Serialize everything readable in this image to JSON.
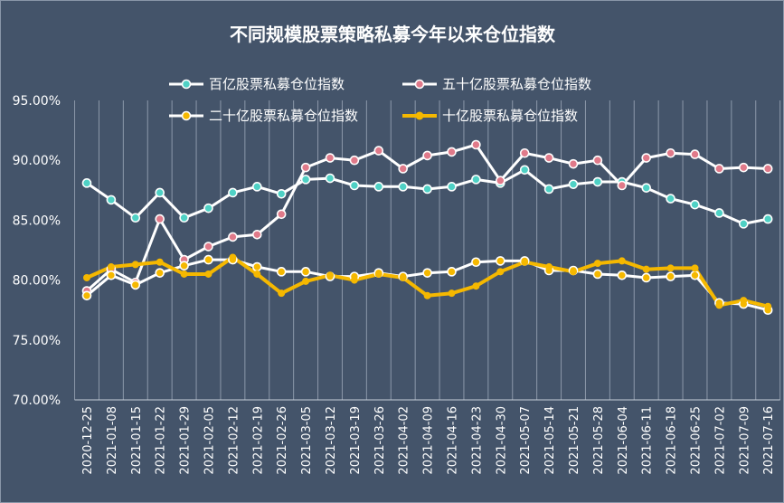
{
  "chart_data": {
    "type": "line",
    "title": "不同规模股票策略私募今年以来仓位指数",
    "xlabel": "",
    "ylabel": "",
    "ylim": [
      70,
      95
    ],
    "y_ticks": [
      "70.00%",
      "75.00%",
      "80.00%",
      "85.00%",
      "90.00%",
      "95.00%"
    ],
    "y_tick_values": [
      70,
      75,
      80,
      85,
      90,
      95
    ],
    "grid": "vertical",
    "legend_position": "top",
    "categories": [
      "2020-12-25",
      "2021-01-08",
      "2021-01-15",
      "2021-01-22",
      "2021-01-29",
      "2021-02-05",
      "2021-02-12",
      "2021-02-19",
      "2021-02-26",
      "2021-03-05",
      "2021-03-12",
      "2021-03-19",
      "2021-03-26",
      "2021-04-02",
      "2021-04-09",
      "2021-04-16",
      "2021-04-23",
      "2021-04-30",
      "2021-05-07",
      "2021-05-14",
      "2021-05-21",
      "2021-05-28",
      "2021-06-04",
      "2021-06-11",
      "2021-06-18",
      "2021-06-25",
      "2021-07-02",
      "2021-07-09",
      "2021-07-16"
    ],
    "series": [
      {
        "name": "百亿股票私募仓位指数",
        "color": "#ffffff",
        "marker": "#4fd1c5",
        "style": "thin",
        "values": [
          88.1,
          86.7,
          85.2,
          87.3,
          85.2,
          86.0,
          87.3,
          87.8,
          87.2,
          88.4,
          88.5,
          87.9,
          87.8,
          87.8,
          87.6,
          87.8,
          88.4,
          88.1,
          89.2,
          87.6,
          88.0,
          88.2,
          88.2,
          87.7,
          86.8,
          86.3,
          85.6,
          84.7,
          85.1
        ]
      },
      {
        "name": "五十亿股票私募仓位指数",
        "color": "#ffffff",
        "marker": "#e07a8a",
        "style": "thin",
        "values": [
          79.1,
          80.9,
          79.8,
          85.1,
          81.7,
          82.8,
          83.6,
          83.8,
          85.5,
          89.4,
          90.2,
          90.0,
          90.8,
          89.3,
          90.4,
          90.7,
          91.3,
          88.3,
          90.6,
          90.2,
          89.7,
          90.0,
          87.9,
          90.2,
          90.6,
          90.5,
          89.3,
          89.4,
          89.3
        ]
      },
      {
        "name": "二十亿股票私募仓位指数",
        "color": "#ffffff",
        "marker": "#f5b800",
        "style": "thin",
        "values": [
          78.7,
          80.4,
          79.6,
          80.6,
          81.2,
          81.7,
          81.7,
          81.1,
          80.7,
          80.7,
          80.3,
          80.3,
          80.6,
          80.3,
          80.6,
          80.7,
          81.5,
          81.6,
          81.6,
          80.8,
          80.8,
          80.5,
          80.4,
          80.2,
          80.3,
          80.4,
          78.1,
          78.0,
          77.5
        ]
      },
      {
        "name": "十亿股票私募仓位指数",
        "color": "#f5b800",
        "marker": "#f5b800",
        "style": "thick",
        "values": [
          80.2,
          81.1,
          81.3,
          81.5,
          80.5,
          80.5,
          81.9,
          80.5,
          78.9,
          79.9,
          80.4,
          80.0,
          80.5,
          80.2,
          78.7,
          78.9,
          79.5,
          80.7,
          81.5,
          81.1,
          80.7,
          81.4,
          81.6,
          80.9,
          81.0,
          81.0,
          77.9,
          78.3,
          77.8
        ]
      }
    ]
  }
}
